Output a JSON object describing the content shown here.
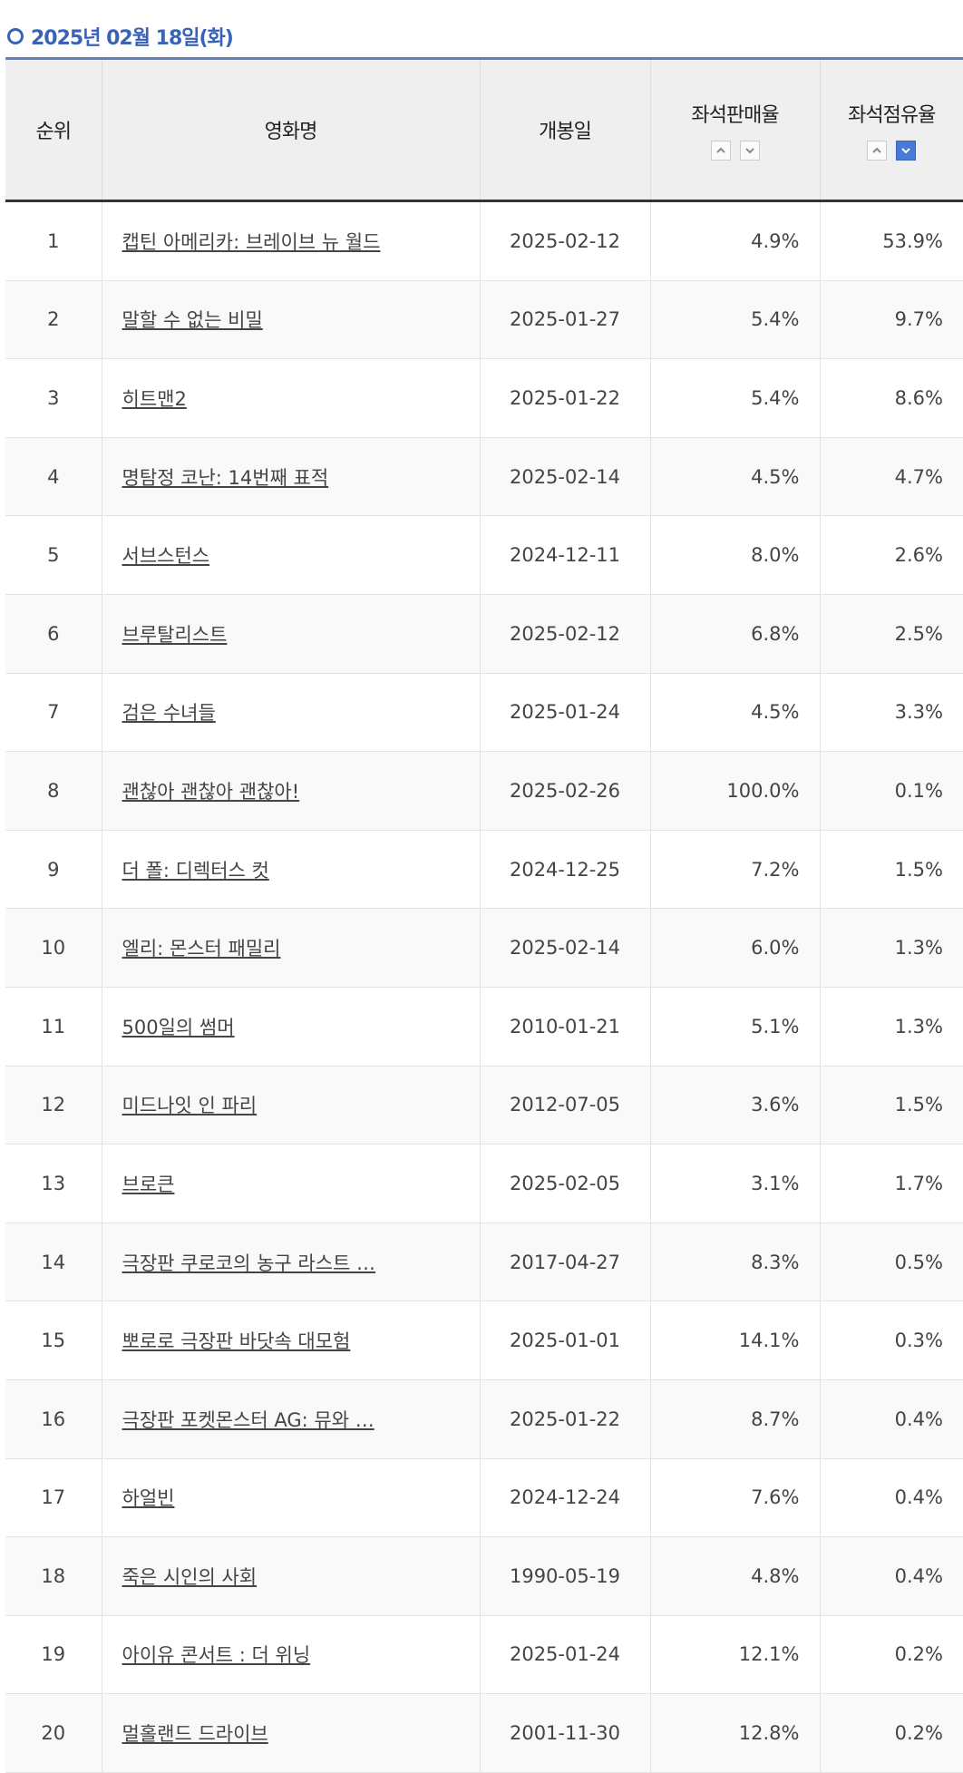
{
  "heading": "2025년 02월 18일(화)",
  "table": {
    "columns": [
      "순위",
      "영화명",
      "개봉일",
      "좌석판매율",
      "좌석점유율"
    ],
    "rows": [
      [
        "1",
        "캡틴 아메리카: 브레이브 뉴 월드",
        "2025-02-12",
        "4.9%",
        "53.9%"
      ],
      [
        "2",
        "말할 수 없는 비밀",
        "2025-01-27",
        "5.4%",
        "9.7%"
      ],
      [
        "3",
        "히트맨2",
        "2025-01-22",
        "5.4%",
        "8.6%"
      ],
      [
        "4",
        "명탐정 코난: 14번째 표적",
        "2025-02-14",
        "4.5%",
        "4.7%"
      ],
      [
        "5",
        "서브스턴스",
        "2024-12-11",
        "8.0%",
        "2.6%"
      ],
      [
        "6",
        "브루탈리스트",
        "2025-02-12",
        "6.8%",
        "2.5%"
      ],
      [
        "7",
        "검은 수녀들",
        "2025-01-24",
        "4.5%",
        "3.3%"
      ],
      [
        "8",
        "괜찮아 괜찮아 괜찮아!",
        "2025-02-26",
        "100.0%",
        "0.1%"
      ],
      [
        "9",
        "더 폴: 디렉터스 컷",
        "2024-12-25",
        "7.2%",
        "1.5%"
      ],
      [
        "10",
        "엘리: 몬스터 패밀리",
        "2025-02-14",
        "6.0%",
        "1.3%"
      ],
      [
        "11",
        "500일의 썸머",
        "2010-01-21",
        "5.1%",
        "1.3%"
      ],
      [
        "12",
        "미드나잇 인 파리",
        "2012-07-05",
        "3.6%",
        "1.5%"
      ],
      [
        "13",
        "브로큰",
        "2025-02-05",
        "3.1%",
        "1.7%"
      ],
      [
        "14",
        "극장판 쿠로코의 농구 라스트 …",
        "2017-04-27",
        "8.3%",
        "0.5%"
      ],
      [
        "15",
        "뽀로로 극장판 바닷속 대모험",
        "2025-01-01",
        "14.1%",
        "0.3%"
      ],
      [
        "16",
        "극장판 포켓몬스터 AG: 뮤와 …",
        "2025-01-22",
        "8.7%",
        "0.4%"
      ],
      [
        "17",
        "하얼빈",
        "2024-12-24",
        "7.6%",
        "0.4%"
      ],
      [
        "18",
        "죽은 시인의 사회",
        "1990-05-19",
        "4.8%",
        "0.4%"
      ],
      [
        "19",
        "아이유 콘서트 : 더 위닝",
        "2025-01-24",
        "12.1%",
        "0.2%"
      ],
      [
        "20",
        "멀홀랜드 드라이브",
        "2001-11-30",
        "12.8%",
        "0.2%"
      ]
    ]
  }
}
